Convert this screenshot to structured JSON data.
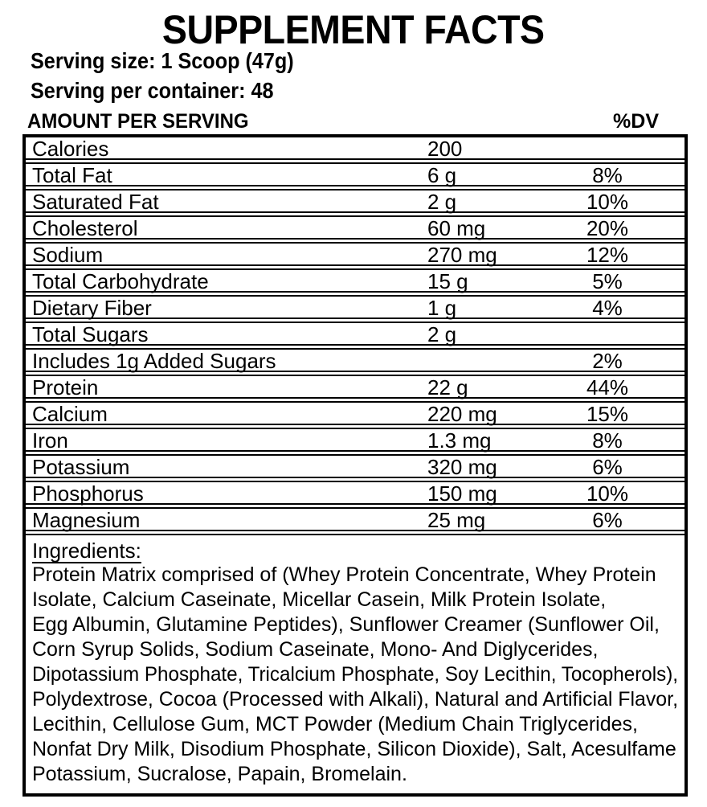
{
  "title": "SUPPLEMENT FACTS",
  "serving": {
    "size": "Serving size: 1 Scoop (47g)",
    "per_container": "Serving per container: 48"
  },
  "table_header": {
    "amount_heading": "AMOUNT PER SERVING",
    "dv_heading": "%DV"
  },
  "nutrients": [
    {
      "name": "Calories",
      "amount": "200",
      "dv": ""
    },
    {
      "name": "Total Fat",
      "amount": "6 g",
      "dv": "8%"
    },
    {
      "name": "Saturated Fat",
      "amount": "2 g",
      "dv": "10%"
    },
    {
      "name": "Cholesterol",
      "amount": "60 mg",
      "dv": "20%"
    },
    {
      "name": "Sodium",
      "amount": "270 mg",
      "dv": "12%"
    },
    {
      "name": "Total Carbohydrate",
      "amount": "15 g",
      "dv": "5%"
    },
    {
      "name": "Dietary Fiber",
      "amount": "1 g",
      "dv": "4%"
    },
    {
      "name": "Total Sugars",
      "amount": "2 g",
      "dv": ""
    },
    {
      "name": "Includes 1g Added Sugars",
      "amount": "",
      "dv": "2%"
    },
    {
      "name": "Protein",
      "amount": "22 g",
      "dv": "44%"
    },
    {
      "name": "Calcium",
      "amount": "220 mg",
      "dv": "15%"
    },
    {
      "name": "Iron",
      "amount": "1.3 mg",
      "dv": "8%"
    },
    {
      "name": "Potassium",
      "amount": "320 mg",
      "dv": "6%"
    },
    {
      "name": "Phosphorus",
      "amount": "150 mg",
      "dv": "10%"
    },
    {
      "name": "Magnesium",
      "amount": "25 mg",
      "dv": "6%"
    }
  ],
  "ingredients": {
    "label": "Ingredients:",
    "lines": [
      "Protein Matrix comprised of (Whey Protein Concentrate, Whey Protein",
      "Isolate, Calcium Caseinate, Micellar Casein, Milk Protein Isolate,",
      "Egg Albumin, Glutamine Peptides), Sunflower Creamer (Sunflower Oil,",
      "Corn Syrup Solids, Sodium Caseinate, Mono- And Diglycerides,",
      "Dipotassium Phosphate, Tricalcium Phosphate, Soy Lecithin, Tocopherols),",
      "Polydextrose, Cocoa (Processed with Alkali), Natural and Artificial Flavor,",
      "Lecithin, Cellulose Gum, MCT Powder (Medium Chain Triglycerides,",
      "Nonfat Dry Milk, Disodium Phosphate, Silicon Dioxide), Salt, Acesulfame",
      "Potassium, Sucralose, Papain, Bromelain."
    ]
  },
  "colors": {
    "text": "#000000",
    "background": "#ffffff",
    "rule": "#000000"
  }
}
